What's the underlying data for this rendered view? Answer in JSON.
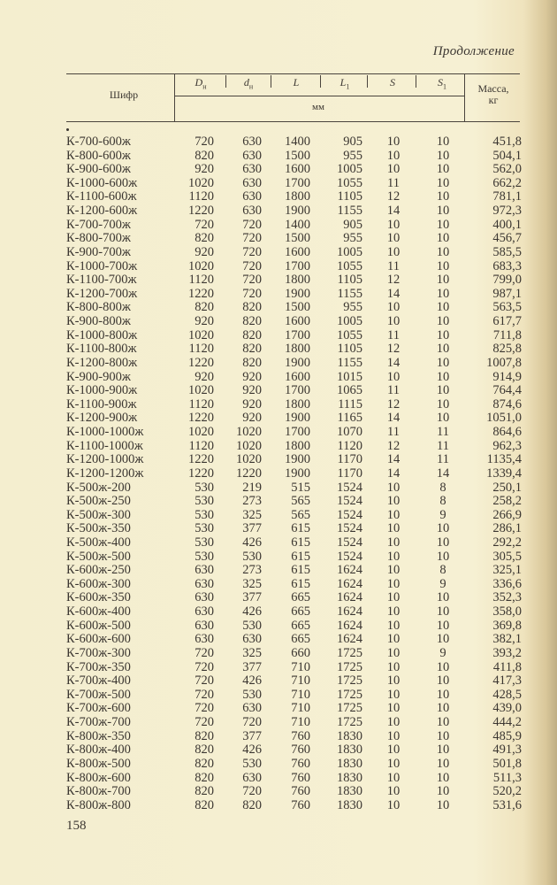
{
  "page": {
    "continuation": "Продолжение",
    "page_number": "158"
  },
  "table": {
    "headers": {
      "code": "Шифр",
      "dn_sym": "D",
      "dn_sub": "н",
      "dn2_sym": "d",
      "dn2_sub": "н",
      "l_sym": "L",
      "l1_sym": "L",
      "l1_sub": "1",
      "s_sym": "S",
      "s1_sym": "S",
      "s1_sub": "1",
      "unit_mm": "мм",
      "mass_line1": "Масса,",
      "mass_line2": "кг"
    },
    "rows": [
      [
        "К-700-600ж",
        "720",
        "630",
        "1400",
        "905",
        "10",
        "10",
        "451,8"
      ],
      [
        "К-800-600ж",
        "820",
        "630",
        "1500",
        "955",
        "10",
        "10",
        "504,1"
      ],
      [
        "К-900-600ж",
        "920",
        "630",
        "1600",
        "1005",
        "10",
        "10",
        "562,0"
      ],
      [
        "К-1000-600ж",
        "1020",
        "630",
        "1700",
        "1055",
        "11",
        "10",
        "662,2"
      ],
      [
        "К-1100-600ж",
        "1120",
        "630",
        "1800",
        "1105",
        "12",
        "10",
        "781,1"
      ],
      [
        "К-1200-600ж",
        "1220",
        "630",
        "1900",
        "1155",
        "14",
        "10",
        "972,3"
      ],
      [
        "К-700-700ж",
        "720",
        "720",
        "1400",
        "905",
        "10",
        "10",
        "400,1"
      ],
      [
        "К-800-700ж",
        "820",
        "720",
        "1500",
        "955",
        "10",
        "10",
        "456,7"
      ],
      [
        "К-900-700ж",
        "920",
        "720",
        "1600",
        "1005",
        "10",
        "10",
        "585,5"
      ],
      [
        "К-1000-700ж",
        "1020",
        "720",
        "1700",
        "1055",
        "11",
        "10",
        "683,3"
      ],
      [
        "К-1100-700ж",
        "1120",
        "720",
        "1800",
        "1105",
        "12",
        "10",
        "799,0"
      ],
      [
        "К-1200-700ж",
        "1220",
        "720",
        "1900",
        "1155",
        "14",
        "10",
        "987,1"
      ],
      [
        "К-800-800ж",
        "820",
        "820",
        "1500",
        "955",
        "10",
        "10",
        "563,5"
      ],
      [
        "К-900-800ж",
        "920",
        "820",
        "1600",
        "1005",
        "10",
        "10",
        "617,7"
      ],
      [
        "К-1000-800ж",
        "1020",
        "820",
        "1700",
        "1055",
        "11",
        "10",
        "711,8"
      ],
      [
        "К-1100-800ж",
        "1120",
        "820",
        "1800",
        "1105",
        "12",
        "10",
        "825,8"
      ],
      [
        "К-1200-800ж",
        "1220",
        "820",
        "1900",
        "1155",
        "14",
        "10",
        "1007,8"
      ],
      [
        "К-900-900ж",
        "920",
        "920",
        "1600",
        "1015",
        "10",
        "10",
        "914,9"
      ],
      [
        "К-1000-900ж",
        "1020",
        "920",
        "1700",
        "1065",
        "11",
        "10",
        "764,4"
      ],
      [
        "К-1100-900ж",
        "1120",
        "920",
        "1800",
        "1115",
        "12",
        "10",
        "874,6"
      ],
      [
        "К-1200-900ж",
        "1220",
        "920",
        "1900",
        "1165",
        "14",
        "10",
        "1051,0"
      ],
      [
        "К-1000-1000ж",
        "1020",
        "1020",
        "1700",
        "1070",
        "11",
        "11",
        "864,6"
      ],
      [
        "К-1100-1000ж",
        "1120",
        "1020",
        "1800",
        "1120",
        "12",
        "11",
        "962,3"
      ],
      [
        "К-1200-1000ж",
        "1220",
        "1020",
        "1900",
        "1170",
        "14",
        "11",
        "1135,4"
      ],
      [
        "К-1200-1200ж",
        "1220",
        "1220",
        "1900",
        "1170",
        "14",
        "14",
        "1339,4"
      ],
      [
        "К-500ж-200",
        "530",
        "219",
        "515",
        "1524",
        "10",
        "8",
        "250,1"
      ],
      [
        "К-500ж-250",
        "530",
        "273",
        "565",
        "1524",
        "10",
        "8",
        "258,2"
      ],
      [
        "К-500ж-300",
        "530",
        "325",
        "565",
        "1524",
        "10",
        "9",
        "266,9"
      ],
      [
        "К-500ж-350",
        "530",
        "377",
        "615",
        "1524",
        "10",
        "10",
        "286,1"
      ],
      [
        "К-500ж-400",
        "530",
        "426",
        "615",
        "1524",
        "10",
        "10",
        "292,2"
      ],
      [
        "К-500ж-500",
        "530",
        "530",
        "615",
        "1524",
        "10",
        "10",
        "305,5"
      ],
      [
        "К-600ж-250",
        "630",
        "273",
        "615",
        "1624",
        "10",
        "8",
        "325,1"
      ],
      [
        "К-600ж-300",
        "630",
        "325",
        "615",
        "1624",
        "10",
        "9",
        "336,6"
      ],
      [
        "К-600ж-350",
        "630",
        "377",
        "665",
        "1624",
        "10",
        "10",
        "352,3"
      ],
      [
        "К-600ж-400",
        "630",
        "426",
        "665",
        "1624",
        "10",
        "10",
        "358,0"
      ],
      [
        "К-600ж-500",
        "630",
        "530",
        "665",
        "1624",
        "10",
        "10",
        "369,8"
      ],
      [
        "К-600ж-600",
        "630",
        "630",
        "665",
        "1624",
        "10",
        "10",
        "382,1"
      ],
      [
        "К-700ж-300",
        "720",
        "325",
        "660",
        "1725",
        "10",
        "9",
        "393,2"
      ],
      [
        "К-700ж-350",
        "720",
        "377",
        "710",
        "1725",
        "10",
        "10",
        "411,8"
      ],
      [
        "К-700ж-400",
        "720",
        "426",
        "710",
        "1725",
        "10",
        "10",
        "417,3"
      ],
      [
        "К-700ж-500",
        "720",
        "530",
        "710",
        "1725",
        "10",
        "10",
        "428,5"
      ],
      [
        "К-700ж-600",
        "720",
        "630",
        "710",
        "1725",
        "10",
        "10",
        "439,0"
      ],
      [
        "К-700ж-700",
        "720",
        "720",
        "710",
        "1725",
        "10",
        "10",
        "444,2"
      ],
      [
        "К-800ж-350",
        "820",
        "377",
        "760",
        "1830",
        "10",
        "10",
        "485,9"
      ],
      [
        "К-800ж-400",
        "820",
        "426",
        "760",
        "1830",
        "10",
        "10",
        "491,3"
      ],
      [
        "К-800ж-500",
        "820",
        "530",
        "760",
        "1830",
        "10",
        "10",
        "501,8"
      ],
      [
        "К-800ж-600",
        "820",
        "630",
        "760",
        "1830",
        "10",
        "10",
        "511,3"
      ],
      [
        "К-800ж-700",
        "820",
        "720",
        "760",
        "1830",
        "10",
        "10",
        "520,2"
      ],
      [
        "К-800ж-800",
        "820",
        "820",
        "760",
        "1830",
        "10",
        "10",
        "531,6"
      ]
    ]
  }
}
